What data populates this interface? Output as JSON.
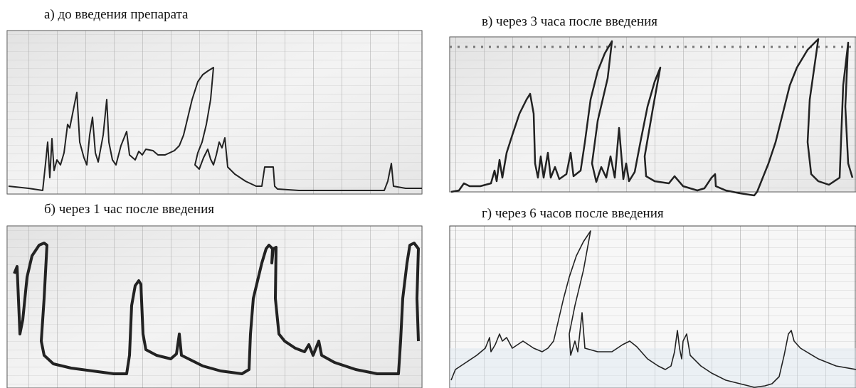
{
  "panels": [
    {
      "caption": "а) до введения препарата"
    },
    {
      "caption": "б) через 1 час после введения"
    },
    {
      "caption": "в) через 3 часа после введения"
    },
    {
      "caption": "г) через 6 часов после введения"
    }
  ]
}
